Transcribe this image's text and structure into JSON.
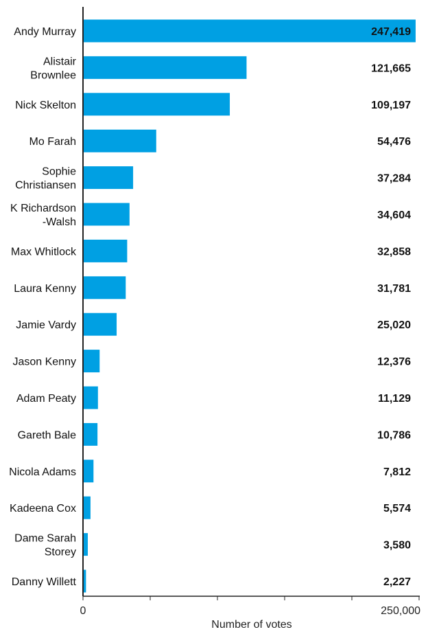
{
  "chart_data": {
    "type": "bar",
    "orientation": "horizontal",
    "categories": [
      [
        "Andy Murray"
      ],
      [
        "Alistair",
        "Brownlee"
      ],
      [
        "Nick Skelton"
      ],
      [
        "Mo Farah"
      ],
      [
        "Sophie",
        "Christiansen"
      ],
      [
        "K Richardson",
        "-Walsh"
      ],
      [
        "Max Whitlock"
      ],
      [
        "Laura Kenny"
      ],
      [
        "Jamie Vardy"
      ],
      [
        "Jason Kenny"
      ],
      [
        "Adam Peaty"
      ],
      [
        "Gareth Bale"
      ],
      [
        "Nicola Adams"
      ],
      [
        "Kadeena Cox"
      ],
      [
        "Dame Sarah",
        "Storey"
      ],
      [
        "Danny Willett"
      ]
    ],
    "values": [
      247419,
      121665,
      109197,
      54476,
      37284,
      34604,
      32858,
      31781,
      25020,
      12376,
      11129,
      10786,
      7812,
      5574,
      3580,
      2227
    ],
    "value_labels": [
      "247,419",
      "121,665",
      "109,197",
      "54,476",
      "37,284",
      "34,604",
      "32,858",
      "31,781",
      "25,020",
      "12,376",
      "11,129",
      "10,786",
      "7,812",
      "5,574",
      "3,580",
      "2,227"
    ],
    "xlabel": "Number of votes",
    "xlim": [
      0,
      250000
    ],
    "x_tick_labels": [
      {
        "value": 0,
        "label": "0"
      },
      {
        "value": 250000,
        "label": "250,000"
      }
    ],
    "minor_ticks": [
      50000,
      100000,
      150000,
      200000
    ],
    "bar_color": "#00a0e3",
    "highlight_label_color": "#ffffff",
    "label_color": "#111111",
    "grid": false
  }
}
